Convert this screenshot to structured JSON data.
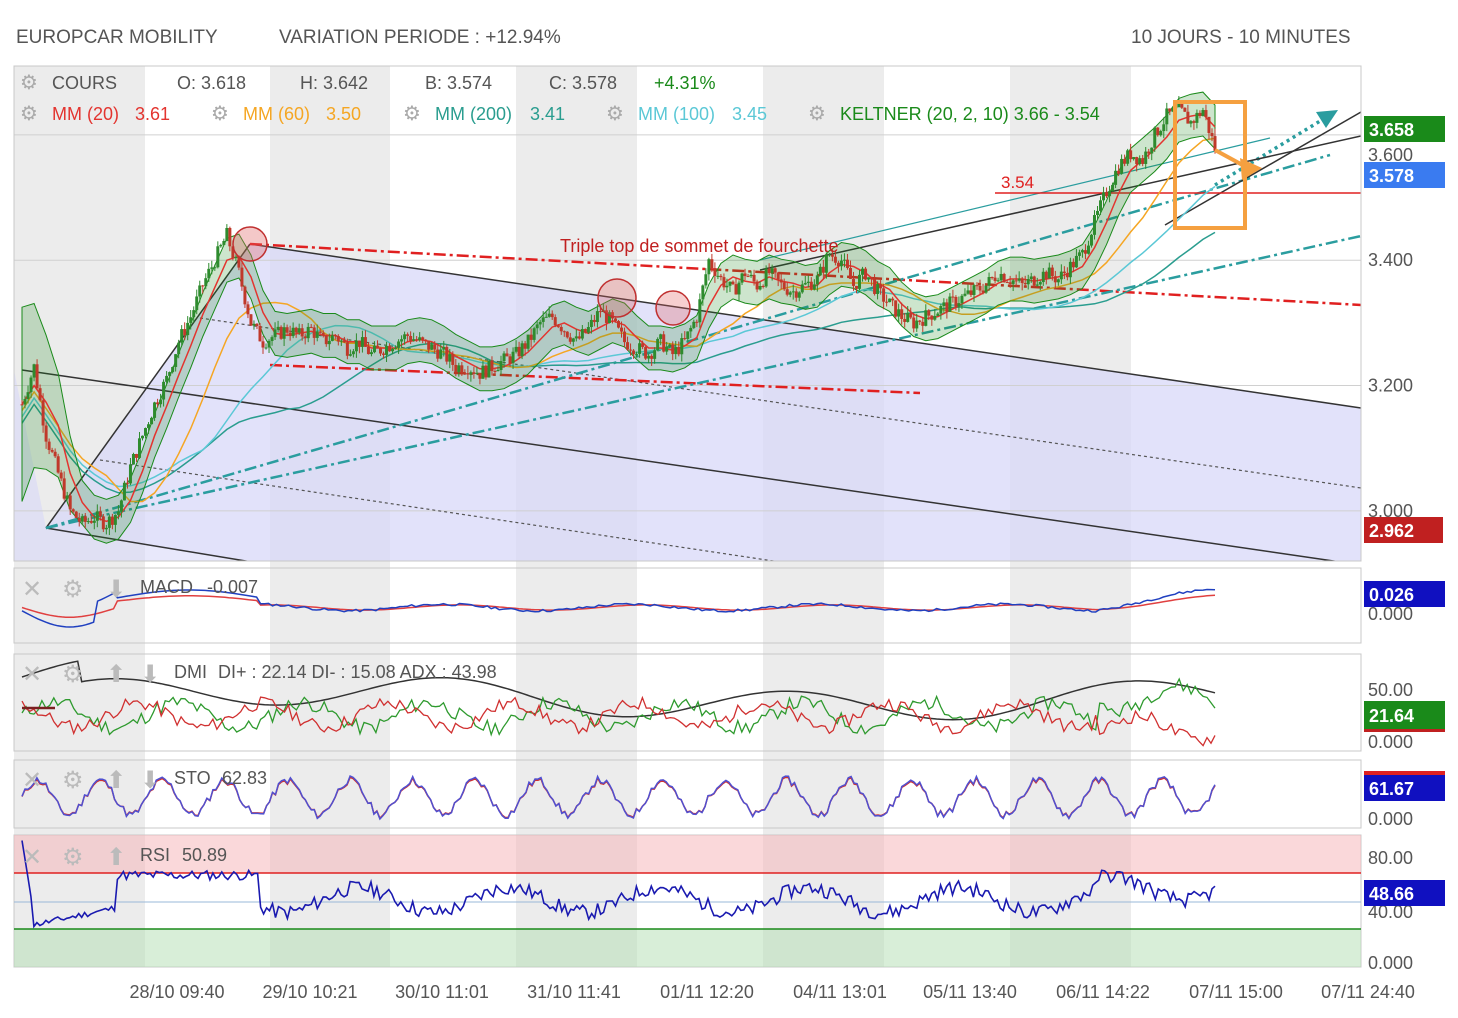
{
  "header": {
    "title": "EUROPCAR MOBILITY",
    "variation": "VARIATION PERIODE : +12.94%",
    "period": "10 JOURS - 10 MINUTES"
  },
  "legend": {
    "cours": "COURS",
    "open": "O: 3.618",
    "high": "H: 3.642",
    "low": "B: 3.574",
    "close": "C: 3.578",
    "change": "+4.31%",
    "mm20_name": "MM (20)",
    "mm20_value": "3.61",
    "mm60_name": "MM (60)",
    "mm60_value": "3.50",
    "mm200_name": "MM (200)",
    "mm200_value": "3.41",
    "mm100_name": "MM (100)",
    "mm100_value": "3.45",
    "keltner": "KELTNER (20, 2, 10) 3.66 - 3.54"
  },
  "colors": {
    "mm20": "#e3342f",
    "mm60": "#f5a623",
    "mm200": "#2a9d8f",
    "mm100": "#5bc8d6",
    "keltner": "#1a8a1a",
    "up": "#2e8b2e",
    "down": "#c0392b",
    "channel_fill": "#d8d8f8",
    "annotation_red": "#e02020",
    "orange": "#f5a040",
    "teal": "#2a9d9f",
    "box_green": "#1a8a1a",
    "box_blue": "#3a7bf0",
    "box_red": "#c02020",
    "box_navy": "#1010c0"
  },
  "annotations": {
    "triple_top": "Triple top de sommet de fourchette",
    "level_354": "3.54"
  },
  "indicators": {
    "macd": {
      "name": "MACD",
      "value": "-0.007",
      "box": "0.026",
      "tick": "0.000"
    },
    "dmi": {
      "name": "DMI",
      "value": "DI+ : 22.14 DI- : 15.08 ADX : 43.98",
      "box": "21.64",
      "ticks": [
        "50.00",
        "0.000"
      ]
    },
    "sto": {
      "name": "STO",
      "value": "62.83",
      "box": "61.67",
      "tick": "0.000"
    },
    "rsi": {
      "name": "RSI",
      "value": "50.89",
      "box": "48.66",
      "ticks": [
        "80.00",
        "40.00",
        "0.000"
      ]
    }
  },
  "chart_data": {
    "type": "line",
    "title": "EUROPCAR MOBILITY",
    "x_labels": [
      "28/10 09:40",
      "29/10 10:21",
      "30/10 11:01",
      "31/10 11:41",
      "01/11 12:20",
      "04/11 13:01",
      "05/11 13:40",
      "06/11 14:22",
      "07/11 15:00",
      "07/11 24:40"
    ],
    "y_ticks": [
      "3.400",
      "3.200",
      "3.000"
    ],
    "y_tick_values": [
      3.4,
      3.2,
      3.0
    ],
    "y_range": [
      2.92,
      3.71
    ],
    "price_boxes": {
      "high": "3.658",
      "grid": "3.600",
      "last": "3.578",
      "low": "2.962"
    },
    "series": [
      {
        "name": "COURS",
        "points": [
          [
            0,
            3.17
          ],
          [
            0.5,
            3.23
          ],
          [
            1,
            3.12
          ],
          [
            1.5,
            3.06
          ],
          [
            2,
            3.0
          ],
          [
            2.5,
            2.98
          ],
          [
            3,
            2.99
          ],
          [
            3.5,
            2.98
          ],
          [
            4,
            3.0
          ],
          [
            4.5,
            3.07
          ],
          [
            5,
            3.12
          ],
          [
            5.5,
            3.17
          ],
          [
            6,
            3.21
          ],
          [
            6.5,
            3.27
          ],
          [
            7,
            3.31
          ],
          [
            7.5,
            3.36
          ],
          [
            8,
            3.4
          ],
          [
            8.5,
            3.44
          ],
          [
            9,
            3.38
          ],
          [
            9.5,
            3.3
          ],
          [
            10,
            3.27
          ],
          [
            10.5,
            3.28
          ],
          [
            11,
            3.29
          ],
          [
            11.5,
            3.28
          ],
          [
            12,
            3.29
          ],
          [
            12.5,
            3.27
          ],
          [
            13,
            3.28
          ],
          [
            13.5,
            3.26
          ],
          [
            14,
            3.27
          ],
          [
            14.5,
            3.25
          ],
          [
            15,
            3.26
          ],
          [
            15.5,
            3.27
          ],
          [
            16,
            3.28
          ],
          [
            16.5,
            3.27
          ],
          [
            17,
            3.26
          ],
          [
            17.5,
            3.25
          ],
          [
            18,
            3.23
          ],
          [
            18.5,
            3.23
          ],
          [
            19,
            3.22
          ],
          [
            19.5,
            3.23
          ],
          [
            20,
            3.24
          ],
          [
            20.5,
            3.25
          ],
          [
            21,
            3.27
          ],
          [
            21.5,
            3.3
          ],
          [
            22,
            3.31
          ],
          [
            22.5,
            3.29
          ],
          [
            23,
            3.27
          ],
          [
            23.5,
            3.29
          ],
          [
            24,
            3.32
          ],
          [
            24.5,
            3.3
          ],
          [
            25,
            3.27
          ],
          [
            25.5,
            3.26
          ],
          [
            26,
            3.25
          ],
          [
            26.5,
            3.27
          ],
          [
            27,
            3.25
          ],
          [
            27.5,
            3.27
          ],
          [
            28,
            3.31
          ],
          [
            28.5,
            3.4
          ],
          [
            29,
            3.37
          ],
          [
            29.5,
            3.35
          ],
          [
            30,
            3.38
          ],
          [
            30.5,
            3.36
          ],
          [
            31,
            3.38
          ],
          [
            31.5,
            3.36
          ],
          [
            32,
            3.35
          ],
          [
            32.5,
            3.36
          ],
          [
            33,
            3.37
          ],
          [
            33.5,
            3.41
          ],
          [
            34,
            3.4
          ],
          [
            34.5,
            3.36
          ],
          [
            35,
            3.38
          ],
          [
            35.5,
            3.35
          ],
          [
            36,
            3.33
          ],
          [
            36.5,
            3.31
          ],
          [
            37,
            3.3
          ],
          [
            37.5,
            3.31
          ],
          [
            38,
            3.32
          ],
          [
            38.5,
            3.33
          ],
          [
            39,
            3.34
          ],
          [
            39.5,
            3.35
          ],
          [
            40,
            3.36
          ],
          [
            40.5,
            3.38
          ],
          [
            41,
            3.37
          ],
          [
            41.5,
            3.36
          ],
          [
            42,
            3.37
          ],
          [
            42.5,
            3.38
          ],
          [
            43,
            3.37
          ],
          [
            43.5,
            3.39
          ],
          [
            44,
            3.41
          ],
          [
            44.5,
            3.46
          ],
          [
            45,
            3.51
          ],
          [
            45.5,
            3.55
          ],
          [
            46,
            3.57
          ],
          [
            46.5,
            3.56
          ],
          [
            47,
            3.6
          ],
          [
            47.5,
            3.63
          ],
          [
            48,
            3.64
          ],
          [
            48.5,
            3.62
          ],
          [
            49,
            3.64
          ],
          [
            49.5,
            3.578
          ]
        ]
      }
    ]
  }
}
